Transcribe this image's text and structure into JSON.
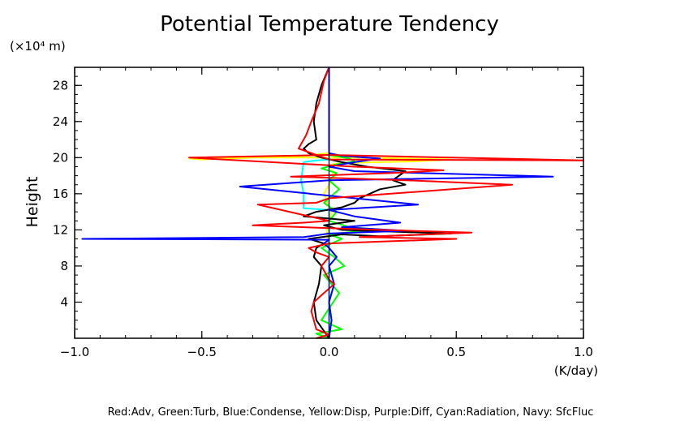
{
  "chart_data": {
    "type": "line",
    "title": "Potential Temperature Tendency",
    "ylabel": "Height",
    "y_unit": "(×10⁴ m)",
    "x_unit": "(K/day)",
    "xlim": [
      -1.0,
      1.0
    ],
    "ylim": [
      0,
      30
    ],
    "x_ticks": [
      -1.0,
      -0.5,
      0.0,
      0.5,
      1.0
    ],
    "x_tick_labels": [
      "−1.0",
      "−0.5",
      "0.0",
      "0.5",
      "1.0"
    ],
    "y_ticks": [
      4,
      8,
      12,
      16,
      20,
      24,
      28
    ],
    "y_tick_labels": [
      "4",
      "8",
      "12",
      "16",
      "20",
      "24",
      "28"
    ],
    "grid": false,
    "footer": "Red:Adv, Green:Turb, Blue:Condense, Yellow:Disp, Purple:Diff, Cyan:Radiation, Navy: SfcFluc",
    "series": [
      {
        "color": "#ffff00",
        "x": [
          0.0,
          0.0,
          -0.01,
          0.01,
          -0.02,
          0.02,
          0.0,
          0.05,
          0.2,
          0.35,
          0.48,
          0.3,
          0.1,
          -0.3,
          -0.5,
          -0.55,
          -0.3,
          -0.1,
          0.0,
          0.0
        ],
        "y": [
          0,
          10,
          12,
          14,
          16,
          18,
          19.2,
          19.4,
          19.5,
          19.6,
          19.8,
          19.9,
          20.0,
          20.0,
          19.8,
          19.9,
          20.1,
          20.2,
          20.5,
          30
        ]
      },
      {
        "color": "#00ffff",
        "x": [
          0.0,
          0.0,
          -0.1,
          -0.1,
          -0.11,
          -0.1,
          -0.05,
          0.0,
          0.0
        ],
        "y": [
          0,
          14.2,
          14.4,
          16.0,
          17.5,
          19.5,
          19.7,
          19.8,
          30
        ]
      },
      {
        "color": "#00ff00",
        "x": [
          0.0,
          -0.05,
          0.05,
          -0.03,
          0.04,
          -0.02,
          0.06,
          0.02,
          -0.03,
          0.05,
          0.0,
          0.1,
          0.22,
          0.08,
          0.0,
          0.03,
          -0.02,
          0.04,
          0.0,
          0.03,
          -0.03,
          0.02,
          0.1,
          0.08,
          0.0,
          0.0
        ],
        "y": [
          0,
          0.5,
          1.0,
          2.0,
          5.0,
          7.0,
          8.0,
          9.0,
          10.0,
          11.0,
          11.5,
          11.8,
          12.0,
          12.3,
          13.0,
          14.0,
          15.0,
          16.5,
          17.5,
          18.3,
          18.8,
          19.2,
          19.6,
          19.9,
          20.3,
          30
        ]
      },
      {
        "color": "#000000",
        "x": [
          0.0,
          -0.05,
          -0.06,
          -0.04,
          -0.03,
          -0.06,
          -0.05,
          -0.02,
          -0.08,
          0.05,
          0.2,
          0.48,
          0.05,
          -0.02,
          0.1,
          -0.1,
          -0.05,
          0.05,
          0.1,
          0.12,
          0.2,
          0.3,
          0.25,
          0.3,
          0.15,
          0.05,
          -0.03,
          -0.08,
          -0.1,
          -0.08,
          -0.05,
          -0.06,
          -0.05,
          -0.03,
          0.0
        ],
        "y": [
          0,
          2,
          4,
          6,
          8,
          9,
          10,
          10.5,
          11.0,
          11.5,
          11.3,
          11.6,
          12.0,
          12.5,
          13.0,
          13.5,
          14.0,
          14.5,
          15.0,
          15.5,
          16.5,
          17.0,
          17.5,
          18.5,
          19.0,
          19.5,
          20.0,
          20.5,
          21.0,
          21.5,
          22.0,
          24.0,
          26.0,
          28.0,
          30
        ]
      },
      {
        "color": "#0000ff",
        "x": [
          0.0,
          0.01,
          0.0,
          0.02,
          0.0,
          0.03,
          0.0,
          -0.02,
          0.0,
          -0.97,
          -0.1,
          0.0,
          0.3,
          0.05,
          0.28,
          0.1,
          0.0,
          0.35,
          0.1,
          -0.35,
          0.0,
          0.88,
          0.1,
          0.0,
          0.1,
          0.2,
          0.05,
          0.0,
          0.0
        ],
        "y": [
          0,
          2.0,
          4.0,
          6.0,
          8.0,
          9.0,
          10.0,
          10.5,
          10.9,
          11.0,
          11.2,
          11.6,
          11.9,
          12.3,
          12.8,
          13.5,
          14.2,
          14.8,
          15.5,
          16.8,
          17.5,
          17.9,
          18.5,
          19.0,
          19.5,
          19.9,
          20.2,
          20.5,
          30
        ]
      },
      {
        "color": "#ff0000",
        "x": [
          -0.05,
          0.0,
          -0.05,
          -0.07,
          -0.06,
          -0.02,
          0.0,
          0.02,
          0.0,
          -0.03,
          0.0,
          -0.05,
          -0.08,
          0.0,
          0.5,
          0.12,
          0.56,
          0.2,
          0.0,
          -0.3,
          -0.1,
          0.0,
          -0.28,
          -0.05,
          0.0,
          0.72,
          0.3,
          -0.15,
          0.25,
          0.45,
          0.1,
          -0.55,
          0.0,
          1.0,
          0.0,
          -0.12,
          -0.09,
          -0.07,
          -0.04,
          -0.02,
          0.0
        ],
        "y": [
          0,
          0.4,
          1.0,
          3.0,
          4.0,
          5.0,
          5.5,
          6.0,
          6.5,
          8.0,
          9.0,
          9.5,
          10.0,
          10.5,
          11.0,
          11.2,
          11.7,
          12.0,
          12.2,
          12.5,
          12.8,
          13.0,
          14.8,
          15.0,
          15.5,
          17.0,
          17.5,
          17.9,
          18.3,
          18.6,
          19.0,
          20.0,
          20.3,
          19.7,
          19.8,
          21.0,
          22.5,
          24.0,
          26.0,
          28.5,
          30
        ]
      }
    ]
  }
}
